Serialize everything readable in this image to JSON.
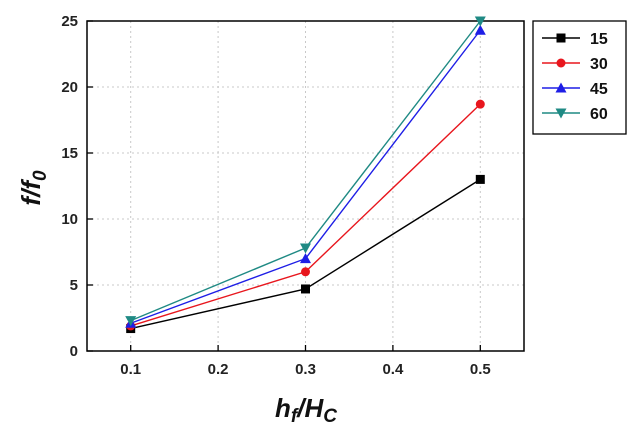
{
  "chart_data": {
    "type": "line",
    "xlabel": "hf/HC",
    "ylabel": "f/f0",
    "x": [
      0.1,
      0.3,
      0.5
    ],
    "xticks": [
      "0.1",
      "0.2",
      "0.3",
      "0.4",
      "0.5"
    ],
    "yticks": [
      "0",
      "5",
      "10",
      "15",
      "20",
      "25"
    ],
    "xlim": [
      0.05,
      0.55
    ],
    "ylim": [
      0,
      25
    ],
    "grid": true,
    "legend_position": "top-right",
    "series": [
      {
        "name": "15",
        "values": [
          1.7,
          4.7,
          13.0
        ],
        "color": "#000000",
        "marker": "square"
      },
      {
        "name": "30",
        "values": [
          1.9,
          6.0,
          18.7
        ],
        "color": "#e8161d",
        "marker": "circle"
      },
      {
        "name": "45",
        "values": [
          2.1,
          7.0,
          24.3
        ],
        "color": "#1e1ee6",
        "marker": "triangle-up"
      },
      {
        "name": "60",
        "values": [
          2.3,
          7.8,
          25.0
        ],
        "color": "#1f8a84",
        "marker": "triangle-down"
      }
    ]
  }
}
